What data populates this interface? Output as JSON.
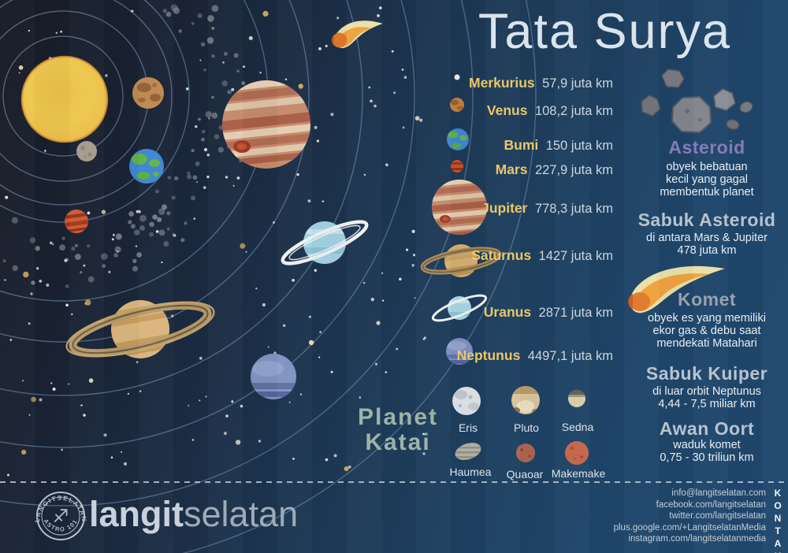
{
  "poster": {
    "title": "Tata Surya"
  },
  "colors": {
    "background_dark": "#171b25",
    "background_blue": "#20496e",
    "planet_name": "#eac768",
    "distance_text": "#ccd6de",
    "asteroid_accent": "#867bb8",
    "komet_accent": "#99a1ab",
    "section_heading": "#b8c3cd",
    "planet_katai_heading": "#9db3a7",
    "orbit_line": "#5d7a99"
  },
  "planets": {
    "items": [
      {
        "name": "Merkurius",
        "distance": "57,9 juta km"
      },
      {
        "name": "Venus",
        "distance": "108,2 juta km"
      },
      {
        "name": "Bumi",
        "distance": "150 juta km"
      },
      {
        "name": "Mars",
        "distance": "227,9 juta km"
      },
      {
        "name": "Jupiter",
        "distance": "778,3 juta km"
      },
      {
        "name": "Saturnus",
        "distance": "1427 juta km"
      },
      {
        "name": "Uranus",
        "distance": "2871 juta km"
      },
      {
        "name": "Neptunus",
        "distance": "4497,1 juta km"
      }
    ]
  },
  "dwarf_planets": {
    "heading": "Planet\nKatai",
    "items": [
      {
        "name": "Eris"
      },
      {
        "name": "Pluto"
      },
      {
        "name": "Sedna"
      },
      {
        "name": "Haumea"
      },
      {
        "name": "Quaoar"
      },
      {
        "name": "Makemake"
      }
    ]
  },
  "sections": {
    "asteroid": {
      "title": "Asteroid",
      "desc": "obyek bebatuan\nkecil yang gagal\nmembentuk planet"
    },
    "sabuk_asteroid": {
      "title": "Sabuk Asteroid",
      "desc": "di antara Mars & Jupiter\n478 juta km"
    },
    "komet": {
      "title": "Komet",
      "desc": "obyek es yang memiliki\nekor gas & debu saat\nmendekati Matahari"
    },
    "sabuk_kuiper": {
      "title": "Sabuk Kuiper",
      "desc": "di luar orbit Neptunus\n4,44 - 7,5 miliar km"
    },
    "awan_oort": {
      "title": "Awan Oort",
      "desc": "waduk komet\n0,75 - 30 triliun km"
    }
  },
  "footer": {
    "logo_bold": "langit",
    "logo_light": "selatan",
    "stamp_top": "LANGITSELATAN",
    "stamp_bottom": "ASTRO 101",
    "stamp_glyph": "♐",
    "kontak": "KONTAK",
    "contacts": [
      "info@langitselatan.com",
      "facebook.com/langitselatan",
      "twitter.com/langitselatan",
      "plus.google.com/+LangitselatanMedia",
      "instagram.com/langitselatanmedia"
    ]
  }
}
